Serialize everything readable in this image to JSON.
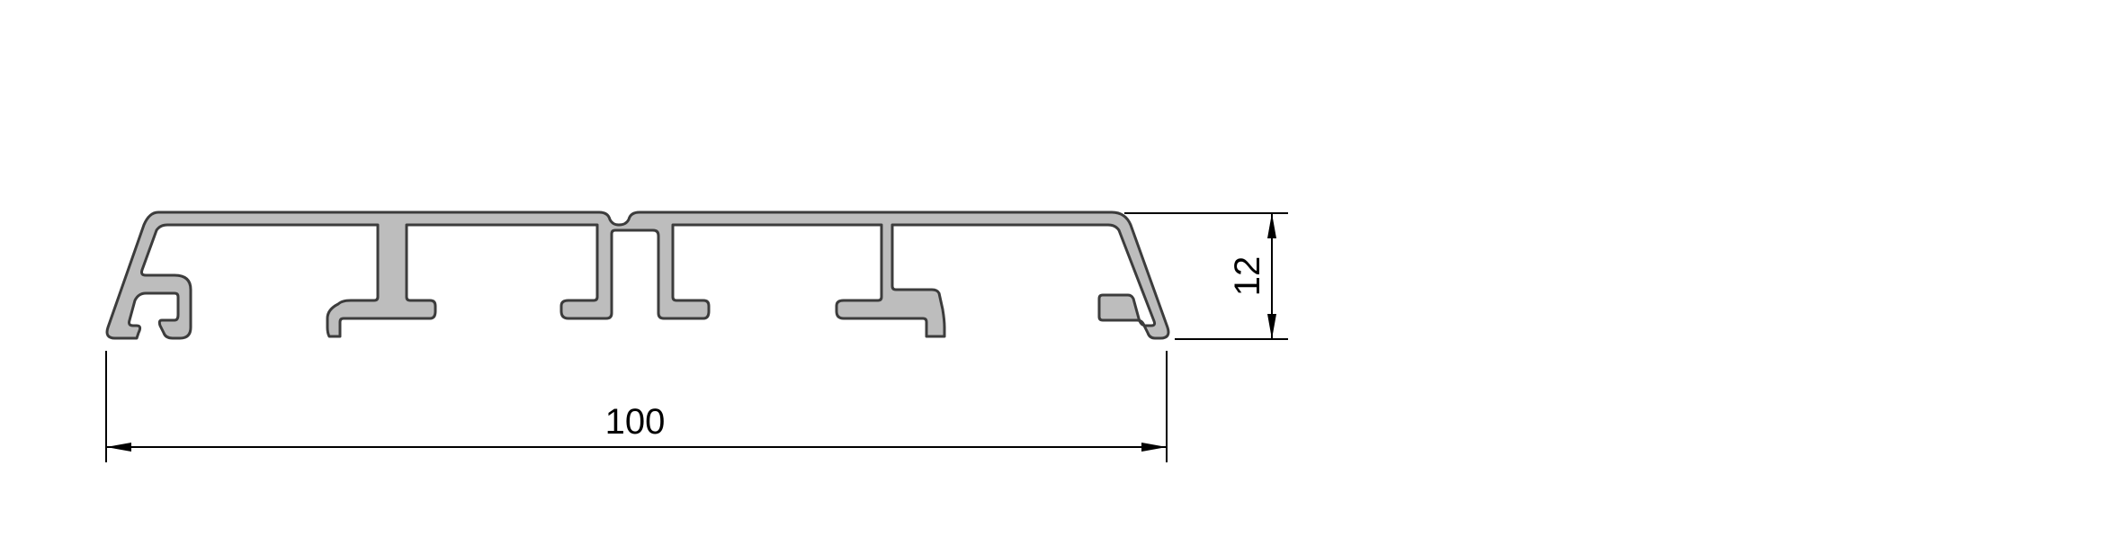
{
  "diagram": {
    "dimension_width": {
      "value": "100"
    },
    "dimension_height": {
      "value": "12"
    }
  },
  "colors": {
    "profile_fill": "#bdbdbd",
    "profile_stroke": "#3c3c3c",
    "dimension_line": "#000000",
    "background": "#ffffff"
  }
}
